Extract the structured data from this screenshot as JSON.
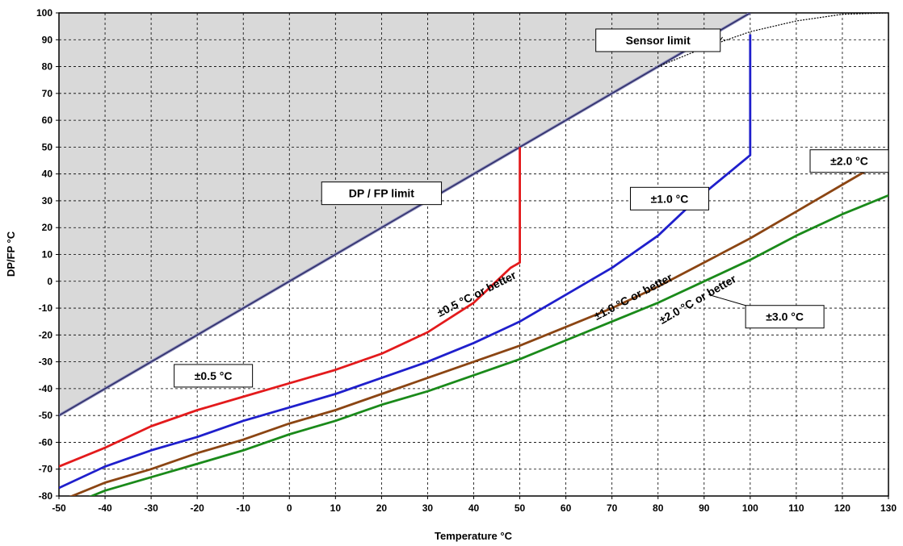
{
  "chart_data": {
    "type": "line",
    "xlabel": "Temperature °C",
    "ylabel": "DP/FP °C",
    "xlim": [
      -50,
      130
    ],
    "ylim": [
      -80,
      100
    ],
    "x_ticks": [
      -50,
      -40,
      -30,
      -20,
      -10,
      0,
      10,
      20,
      30,
      40,
      50,
      60,
      70,
      80,
      90,
      100,
      110,
      120,
      130
    ],
    "y_ticks": [
      -80,
      -70,
      -60,
      -50,
      -40,
      -30,
      -20,
      -10,
      0,
      10,
      20,
      30,
      40,
      50,
      60,
      70,
      80,
      90,
      100
    ],
    "grid": true,
    "region_label": "DP / FP limit",
    "series": [
      {
        "name": "±0.5 °C",
        "color": "#e31a1c",
        "points": [
          [
            -50,
            -69
          ],
          [
            -40,
            -62
          ],
          [
            -30,
            -54
          ],
          [
            -20,
            -48
          ],
          [
            -10,
            -43
          ],
          [
            0,
            -38
          ],
          [
            10,
            -33
          ],
          [
            20,
            -27
          ],
          [
            30,
            -19
          ],
          [
            40,
            -8
          ],
          [
            48,
            5
          ],
          [
            50,
            7
          ],
          [
            50,
            50
          ]
        ]
      },
      {
        "name": "±1.0 °C",
        "color": "#1f1fcc",
        "points": [
          [
            -50,
            -77
          ],
          [
            -40,
            -69
          ],
          [
            -30,
            -63
          ],
          [
            -20,
            -58
          ],
          [
            -10,
            -52
          ],
          [
            0,
            -47
          ],
          [
            10,
            -42
          ],
          [
            20,
            -36
          ],
          [
            30,
            -30
          ],
          [
            40,
            -23
          ],
          [
            50,
            -15
          ],
          [
            60,
            -5
          ],
          [
            70,
            5
          ],
          [
            80,
            17
          ],
          [
            88,
            30
          ],
          [
            100,
            47
          ],
          [
            100,
            92
          ]
        ]
      },
      {
        "name": "±2.0 °C",
        "color": "#8b4513",
        "points": [
          [
            -50,
            -82
          ],
          [
            -40,
            -75
          ],
          [
            -30,
            -70
          ],
          [
            -20,
            -64
          ],
          [
            -10,
            -59
          ],
          [
            0,
            -53
          ],
          [
            10,
            -48
          ],
          [
            20,
            -42
          ],
          [
            30,
            -36
          ],
          [
            40,
            -30
          ],
          [
            50,
            -24
          ],
          [
            60,
            -17
          ],
          [
            70,
            -10
          ],
          [
            80,
            -2
          ],
          [
            90,
            7
          ],
          [
            100,
            16
          ],
          [
            110,
            26
          ],
          [
            120,
            36
          ],
          [
            130,
            46
          ]
        ]
      },
      {
        "name": "±3.0 °C",
        "color": "#1a8a1a",
        "points": [
          [
            -50,
            -85
          ],
          [
            -40,
            -78
          ],
          [
            -30,
            -73
          ],
          [
            -20,
            -68
          ],
          [
            -10,
            -63
          ],
          [
            0,
            -57
          ],
          [
            10,
            -52
          ],
          [
            20,
            -46
          ],
          [
            30,
            -41
          ],
          [
            40,
            -35
          ],
          [
            50,
            -29
          ],
          [
            60,
            -22
          ],
          [
            70,
            -15
          ],
          [
            80,
            -8
          ],
          [
            90,
            0
          ],
          [
            100,
            8
          ],
          [
            110,
            17
          ],
          [
            120,
            25
          ],
          [
            130,
            32
          ]
        ]
      }
    ],
    "dp_fp_limit": {
      "color": "#2a2a66",
      "points": [
        [
          -50,
          -50
        ],
        [
          100,
          100
        ]
      ]
    },
    "sensor_limit_curve": {
      "points": [
        [
          80,
          80
        ],
        [
          90,
          87
        ],
        [
          100,
          93
        ],
        [
          110,
          97
        ],
        [
          120,
          99.5
        ],
        [
          130,
          100
        ]
      ]
    },
    "annotations": [
      {
        "text": "±0.5 °C or better",
        "x": 41,
        "y": -6,
        "angle": -27
      },
      {
        "text": "±1.0 °C or better",
        "x": 75,
        "y": -7,
        "angle": -28
      },
      {
        "text": "±2.0 °C or better",
        "x": 89,
        "y": -8,
        "angle": -30
      }
    ],
    "labels": [
      {
        "text": "Sensor limit",
        "box_x": 66.5,
        "box_y": 94,
        "w": 27,
        "pt_x": 94,
        "pt_y": 91
      },
      {
        "text": "DP / FP limit",
        "box_x": 7,
        "box_y": 37,
        "w": 26,
        "pt_x": 31,
        "pt_y": 30
      },
      {
        "text": "±1.0 °C",
        "box_x": 74,
        "box_y": 35,
        "w": 17,
        "pt_x": 87,
        "pt_y": 31
      },
      {
        "text": "±2.0 °C",
        "box_x": 113,
        "box_y": 49,
        "w": 17,
        "pt_x": 122,
        "pt_y": 40
      },
      {
        "text": "±0.5 °C",
        "box_x": -25,
        "box_y": -31,
        "w": 17,
        "pt_x": -8,
        "pt_y": -37
      },
      {
        "text": "±3.0 °C",
        "box_x": 99,
        "box_y": -9,
        "w": 17,
        "pt_x": 91,
        "pt_y": -5
      }
    ]
  }
}
